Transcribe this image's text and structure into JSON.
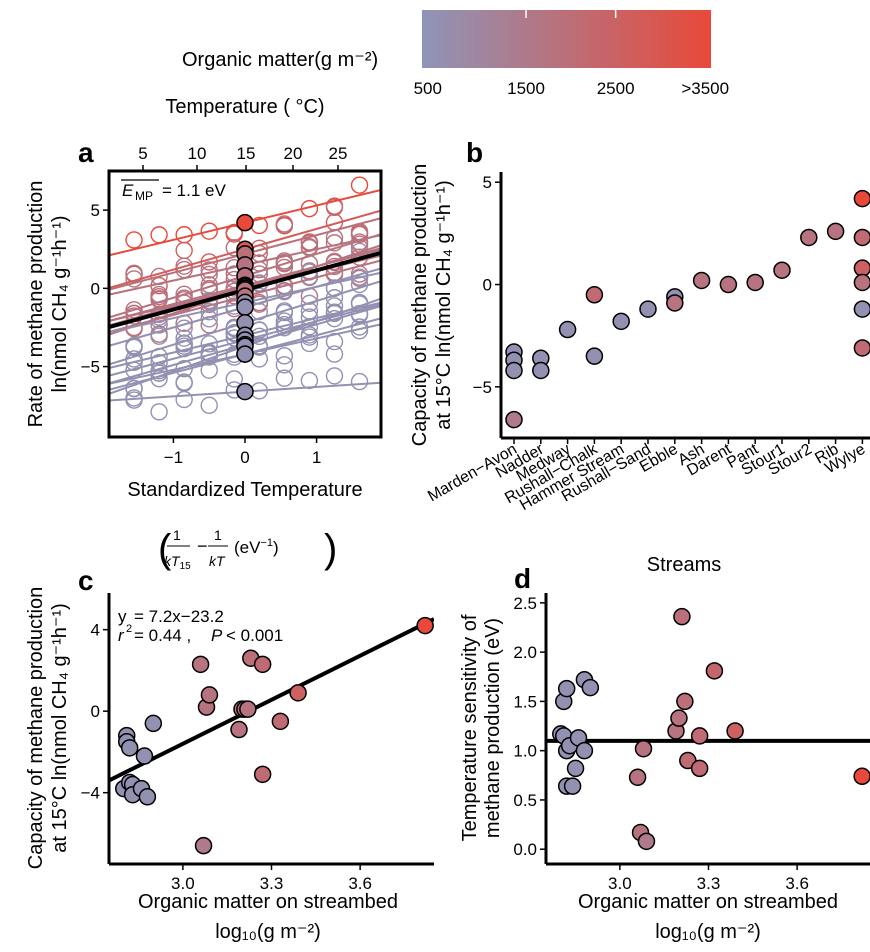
{
  "legend": {
    "title": "Organic matter(g m⁻²)",
    "ticks": [
      "500",
      "1500",
      "2500",
      ">3500"
    ],
    "color_low": "#8e95b8",
    "color_high": "#e8493a"
  },
  "chart_data": [
    {
      "panel": "a",
      "type": "scatter",
      "xlabel": "Standardized Temperature",
      "xlabel_sub": "(1/kT15 − 1/kT (eV⁻¹))",
      "ylabel_line1": "Rate of methane production",
      "ylabel_line2": "ln(nmol CH₄ g⁻¹h⁻¹)",
      "top_axis_label": "Temperature ( °C)",
      "top_ticks": [
        "5",
        "10",
        "15",
        "20",
        "25"
      ],
      "x_ticks": [
        "−1",
        "0",
        "1"
      ],
      "y_ticks": [
        "−5",
        "0",
        "5"
      ],
      "annotation_label": "E",
      "annotation_sub": "MP",
      "annotation_value": "= 1.1 eV",
      "xlim": [
        -1.9,
        1.9
      ],
      "ylim": [
        -9.5,
        7.5
      ],
      "grid": false,
      "mean_line": {
        "intercept": -0.1,
        "slope": 1.25
      },
      "centered_values": [
        4.2,
        2.5,
        2.2,
        1.5,
        0.8,
        0.2,
        0.1,
        0.0,
        -0.1,
        -0.5,
        -0.9,
        -1.2,
        -2.2,
        -3.0,
        -3.3,
        -3.6,
        -3.7,
        -4.2,
        -4.2,
        -6.6
      ],
      "site_slopes": [
        1.1,
        1.3,
        1.2,
        1.0,
        1.4,
        1.2,
        1.3,
        1.1,
        1.5,
        1.2,
        1.0,
        1.3,
        1.4,
        1.1,
        1.2,
        1.3,
        1.6,
        1.2,
        1.0,
        0.3
      ]
    },
    {
      "panel": "b",
      "type": "scatter",
      "ylabel_line1": "Capacity of methane production",
      "ylabel_line2": "at 15°C ln(nmol CH₄ g⁻¹h⁻¹)",
      "categories": [
        "Marden−Avon",
        "Nadder",
        "Medway",
        "Rushall−Chalk",
        "Hammer Stream",
        "Rushall−Sand",
        "Ebble",
        "Ash",
        "Darent",
        "Pant",
        "Stour1",
        "Stour2",
        "Rib",
        "Wylye"
      ],
      "y_ticks": [
        "−5",
        "0",
        "5"
      ],
      "ylim": [
        -7.5,
        5.5
      ],
      "points": [
        {
          "cat": 0,
          "y": -3.3,
          "om": 0.05
        },
        {
          "cat": 0,
          "y": -3.7,
          "om": 0.05
        },
        {
          "cat": 0,
          "y": -4.2,
          "om": 0.05
        },
        {
          "cat": 0,
          "y": -6.6,
          "om": 0.35
        },
        {
          "cat": 1,
          "y": -3.6,
          "om": 0.05
        },
        {
          "cat": 1,
          "y": -4.2,
          "om": 0.05
        },
        {
          "cat": 2,
          "y": -2.2,
          "om": 0.05
        },
        {
          "cat": 3,
          "y": -0.5,
          "om": 0.55
        },
        {
          "cat": 3,
          "y": -3.5,
          "om": 0.05
        },
        {
          "cat": 4,
          "y": -1.8,
          "om": 0.05
        },
        {
          "cat": 5,
          "y": -1.2,
          "om": 0.05
        },
        {
          "cat": 6,
          "y": -0.6,
          "om": 0.05
        },
        {
          "cat": 6,
          "y": -0.9,
          "om": 0.45
        },
        {
          "cat": 7,
          "y": 0.2,
          "om": 0.45
        },
        {
          "cat": 8,
          "y": 0.0,
          "om": 0.45
        },
        {
          "cat": 9,
          "y": 0.1,
          "om": 0.45
        },
        {
          "cat": 10,
          "y": 0.7,
          "om": 0.45
        },
        {
          "cat": 11,
          "y": 2.3,
          "om": 0.45
        },
        {
          "cat": 12,
          "y": 2.6,
          "om": 0.45
        },
        {
          "cat": 13,
          "y": 4.2,
          "om": 1.0
        },
        {
          "cat": 13,
          "y": 2.3,
          "om": 0.55
        },
        {
          "cat": 13,
          "y": 0.8,
          "om": 0.7
        },
        {
          "cat": 13,
          "y": 0.1,
          "om": 0.45
        },
        {
          "cat": 13,
          "y": -1.2,
          "om": 0.05
        },
        {
          "cat": 13,
          "y": -3.1,
          "om": 0.55
        }
      ]
    },
    {
      "panel": "c",
      "type": "scatter",
      "xlabel_line1": "Organic matter on streambed",
      "xlabel_line2": "log₁₀(g m⁻²)",
      "ylabel_line1": "Capacity of methane production",
      "ylabel_line2": "at 15°C ln(nmol CH₄ g⁻¹h⁻¹)",
      "eq_label": "y",
      "eq_value": "= 7.2x−23.2",
      "stat_r_label": "r",
      "stat_r_value": "= 0.44 ,",
      "stat_p_label": "P",
      "stat_p_value": "< 0.001",
      "x_ticks": [
        "3.0",
        "3.3",
        "3.6"
      ],
      "y_ticks": [
        "−4",
        "0",
        "4"
      ],
      "xlim": [
        2.75,
        3.85
      ],
      "ylim": [
        -7.5,
        5.8
      ],
      "fit": {
        "slope": 7.2,
        "intercept": -23.2
      },
      "points": [
        {
          "x": 2.8,
          "y": -3.8,
          "om": 0.05
        },
        {
          "x": 2.81,
          "y": -1.2,
          "om": 0.05
        },
        {
          "x": 2.81,
          "y": -1.5,
          "om": 0.05
        },
        {
          "x": 2.82,
          "y": -1.8,
          "om": 0.05
        },
        {
          "x": 2.82,
          "y": -3.5,
          "om": 0.05
        },
        {
          "x": 2.83,
          "y": -3.6,
          "om": 0.05
        },
        {
          "x": 2.83,
          "y": -4.1,
          "om": 0.05
        },
        {
          "x": 2.86,
          "y": -3.8,
          "om": 0.05
        },
        {
          "x": 2.87,
          "y": -2.2,
          "om": 0.05
        },
        {
          "x": 2.88,
          "y": -4.2,
          "om": 0.05
        },
        {
          "x": 2.9,
          "y": -0.6,
          "om": 0.05
        },
        {
          "x": 3.06,
          "y": 2.3,
          "om": 0.45
        },
        {
          "x": 3.07,
          "y": -6.6,
          "om": 0.35
        },
        {
          "x": 3.08,
          "y": 0.2,
          "om": 0.45
        },
        {
          "x": 3.09,
          "y": 0.8,
          "om": 0.45
        },
        {
          "x": 3.19,
          "y": -0.9,
          "om": 0.45
        },
        {
          "x": 3.2,
          "y": 0.1,
          "om": 0.45
        },
        {
          "x": 3.21,
          "y": 0.1,
          "om": 0.45
        },
        {
          "x": 3.22,
          "y": 0.1,
          "om": 0.45
        },
        {
          "x": 3.23,
          "y": 2.6,
          "om": 0.5
        },
        {
          "x": 3.27,
          "y": 2.3,
          "om": 0.55
        },
        {
          "x": 3.27,
          "y": -3.1,
          "om": 0.55
        },
        {
          "x": 3.33,
          "y": -0.5,
          "om": 0.55
        },
        {
          "x": 3.39,
          "y": 0.9,
          "om": 0.7
        },
        {
          "x": 3.82,
          "y": 4.2,
          "om": 1.0
        }
      ]
    },
    {
      "panel": "d",
      "type": "scatter",
      "title": "Streams",
      "xlabel_line1": "Organic matter on streambed",
      "xlabel_line2": "log₁₀(g m⁻²)",
      "ylabel_line1": "Temperature sensitivity of",
      "ylabel_line2": "methane production (eV)",
      "x_ticks": [
        "3.0",
        "3.3",
        "3.6"
      ],
      "y_ticks": [
        "0.0",
        "0.5",
        "1.0",
        "1.5",
        "2.0",
        "2.5"
      ],
      "xlim": [
        2.75,
        3.85
      ],
      "ylim": [
        -0.15,
        2.6
      ],
      "hline": 1.1,
      "points": [
        {
          "x": 2.8,
          "y": 1.17,
          "om": 0.05
        },
        {
          "x": 2.81,
          "y": 1.15,
          "om": 0.05
        },
        {
          "x": 2.81,
          "y": 1.5,
          "om": 0.05
        },
        {
          "x": 2.82,
          "y": 1.63,
          "om": 0.05
        },
        {
          "x": 2.82,
          "y": 1.0,
          "om": 0.05
        },
        {
          "x": 2.82,
          "y": 0.64,
          "om": 0.05
        },
        {
          "x": 2.83,
          "y": 1.05,
          "om": 0.05
        },
        {
          "x": 2.84,
          "y": 0.64,
          "om": 0.05
        },
        {
          "x": 2.85,
          "y": 0.82,
          "om": 0.05
        },
        {
          "x": 2.86,
          "y": 1.13,
          "om": 0.05
        },
        {
          "x": 2.88,
          "y": 1.72,
          "om": 0.05
        },
        {
          "x": 2.88,
          "y": 1.0,
          "om": 0.05
        },
        {
          "x": 2.9,
          "y": 1.64,
          "om": 0.05
        },
        {
          "x": 3.06,
          "y": 0.73,
          "om": 0.45
        },
        {
          "x": 3.07,
          "y": 0.17,
          "om": 0.45
        },
        {
          "x": 3.08,
          "y": 1.02,
          "om": 0.45
        },
        {
          "x": 3.09,
          "y": 0.08,
          "om": 0.35
        },
        {
          "x": 3.19,
          "y": 1.2,
          "om": 0.45
        },
        {
          "x": 3.2,
          "y": 1.33,
          "om": 0.45
        },
        {
          "x": 3.21,
          "y": 2.36,
          "om": 0.5
        },
        {
          "x": 3.22,
          "y": 1.5,
          "om": 0.5
        },
        {
          "x": 3.23,
          "y": 0.9,
          "om": 0.55
        },
        {
          "x": 3.27,
          "y": 1.15,
          "om": 0.55
        },
        {
          "x": 3.27,
          "y": 0.82,
          "om": 0.55
        },
        {
          "x": 3.32,
          "y": 1.81,
          "om": 0.6
        },
        {
          "x": 3.39,
          "y": 1.2,
          "om": 0.7
        },
        {
          "x": 3.82,
          "y": 0.74,
          "om": 1.0
        }
      ]
    }
  ]
}
